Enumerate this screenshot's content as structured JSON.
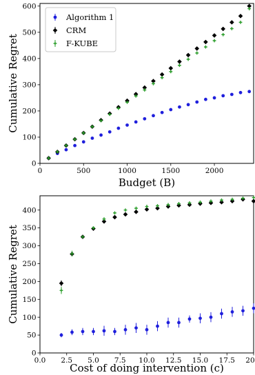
{
  "chart_data": [
    {
      "type": "scatter",
      "xlabel": "Budget (B)",
      "ylabel": "Cumulative Regret",
      "xlim": [
        0,
        2450
      ],
      "ylim": [
        0,
        610
      ],
      "xticks": [
        0,
        500,
        1000,
        1500,
        2000
      ],
      "yticks": [
        0,
        100,
        200,
        300,
        400,
        500,
        600
      ],
      "legend": "top-left",
      "series": [
        {
          "name": "Algorithm 1",
          "color": "#1f1fdc",
          "marker": "circle",
          "x": [
            100,
            200,
            300,
            400,
            500,
            600,
            700,
            800,
            900,
            1000,
            1100,
            1200,
            1300,
            1400,
            1500,
            1600,
            1700,
            1800,
            1900,
            2000,
            2100,
            2200,
            2300,
            2400
          ],
          "y": [
            20,
            38,
            52,
            68,
            82,
            96,
            108,
            120,
            134,
            146,
            158,
            170,
            182,
            194,
            205,
            215,
            224,
            234,
            244,
            250,
            258,
            263,
            270,
            274
          ]
        },
        {
          "name": "CRM",
          "color": "#000000",
          "marker": "diamond",
          "x": [
            100,
            200,
            300,
            400,
            500,
            600,
            700,
            800,
            900,
            1000,
            1100,
            1200,
            1300,
            1400,
            1500,
            1600,
            1700,
            1800,
            1900,
            2000,
            2100,
            2200,
            2300,
            2400
          ],
          "y": [
            20,
            44,
            68,
            92,
            116,
            140,
            165,
            190,
            214,
            239,
            264,
            289,
            314,
            339,
            363,
            388,
            413,
            438,
            463,
            488,
            513,
            538,
            562,
            600
          ]
        },
        {
          "name": "F-KUBE",
          "color": "#2a9d2a",
          "marker": "plus",
          "x": [
            100,
            200,
            300,
            400,
            500,
            600,
            700,
            800,
            900,
            1000,
            1100,
            1200,
            1300,
            1400,
            1500,
            1600,
            1700,
            1800,
            1900,
            2000,
            2100,
            2200,
            2300,
            2400
          ],
          "y": [
            20,
            44,
            68,
            92,
            116,
            140,
            163,
            187,
            210,
            233,
            257,
            280,
            304,
            327,
            350,
            374,
            397,
            421,
            444,
            468,
            491,
            514,
            538,
            590
          ]
        }
      ]
    },
    {
      "type": "scatter",
      "xlabel": "Cost of doing intervention (c)",
      "ylabel": "Cumulative Regret",
      "xlim": [
        0,
        20
      ],
      "ylim": [
        0,
        440
      ],
      "xticks": [
        0.0,
        2.5,
        5.0,
        7.5,
        10.0,
        12.5,
        15.0,
        17.5,
        20.0
      ],
      "xtick_labels": [
        "0.0",
        "2.5",
        "5.0",
        "7.5",
        "10.0",
        "12.5",
        "15.0",
        "17.5",
        "20.0"
      ],
      "yticks": [
        0,
        50,
        100,
        150,
        200,
        250,
        300,
        350,
        400
      ],
      "series": [
        {
          "name": "Algorithm 1",
          "color": "#1f1fdc",
          "marker": "circle",
          "x": [
            2,
            3,
            4,
            5,
            6,
            7,
            8,
            9,
            10,
            11,
            12,
            13,
            14,
            15,
            16,
            17,
            18,
            19,
            20
          ],
          "y": [
            50,
            58,
            60,
            60,
            62,
            60,
            65,
            70,
            65,
            75,
            85,
            85,
            95,
            97,
            100,
            110,
            115,
            118,
            125
          ],
          "err": [
            6,
            8,
            10,
            10,
            14,
            10,
            14,
            14,
            14,
            14,
            14,
            14,
            10,
            14,
            14,
            14,
            14,
            14,
            14
          ]
        },
        {
          "name": "CRM",
          "color": "#000000",
          "marker": "diamond",
          "x": [
            2,
            3,
            4,
            5,
            6,
            7,
            8,
            9,
            10,
            11,
            12,
            13,
            14,
            15,
            16,
            17,
            18,
            19,
            20
          ],
          "y": [
            195,
            277,
            325,
            348,
            368,
            380,
            388,
            395,
            402,
            405,
            410,
            413,
            415,
            418,
            420,
            422,
            425,
            430,
            425
          ],
          "err": [
            8,
            6,
            4,
            4,
            4,
            4,
            4,
            4,
            4,
            4,
            4,
            4,
            4,
            4,
            4,
            4,
            4,
            4,
            4
          ]
        },
        {
          "name": "F-KUBE",
          "color": "#2a9d2a",
          "marker": "plus",
          "x": [
            2,
            3,
            4,
            5,
            6,
            7,
            8,
            9,
            10,
            11,
            12,
            13,
            14,
            15,
            16,
            17,
            18,
            19,
            20
          ],
          "y": [
            175,
            278,
            325,
            350,
            375,
            392,
            400,
            405,
            410,
            412,
            415,
            418,
            420,
            422,
            425,
            428,
            430,
            433,
            435
          ],
          "err": [
            10,
            8,
            4,
            4,
            4,
            4,
            4,
            4,
            4,
            4,
            4,
            4,
            4,
            4,
            4,
            4,
            4,
            4,
            4
          ]
        }
      ]
    }
  ]
}
